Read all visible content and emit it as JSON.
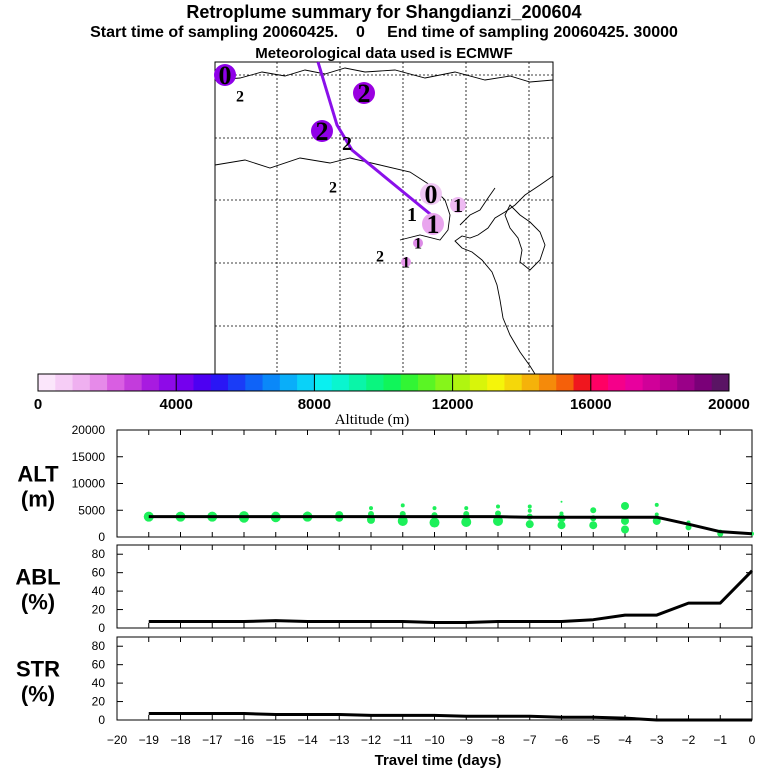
{
  "titles": {
    "line1": "Retroplume summary for Shangdianzi_200604",
    "line2": "Start time of sampling 20060425.    0     End time of sampling 20060425. 30000",
    "line3": "Meteorological data used is ECMWF"
  },
  "colorbar": {
    "title": "Altitude (m)",
    "tick_labels": [
      "0",
      "4000",
      "8000",
      "12000",
      "16000",
      "20000"
    ],
    "colors": [
      "#fbe6fb",
      "#f6cdf6",
      "#efb0f0",
      "#e68ae9",
      "#d95ee2",
      "#c33cdc",
      "#a81be0",
      "#8e0ae8",
      "#7500ee",
      "#4d00f2",
      "#2a16f5",
      "#1a3cf7",
      "#0f63f8",
      "#0a88f9",
      "#0aaef9",
      "#0ad2f8",
      "#0af0f0",
      "#0af5cf",
      "#0af5a8",
      "#0af57f",
      "#10f55a",
      "#32f534",
      "#5af524",
      "#86f51a",
      "#b0f510",
      "#d8f50a",
      "#f5f50a",
      "#f5d70a",
      "#f5b20a",
      "#f58a0a",
      "#f5600a",
      "#f0161e",
      "#ff0064",
      "#f5008a",
      "#e8009e",
      "#d00099",
      "#b80092",
      "#9a0088",
      "#7a0078",
      "#5a1464"
    ]
  },
  "map": {
    "markers": [
      {
        "label": "0",
        "size": "large",
        "color": "#8e00e8"
      },
      {
        "label": "2",
        "size": "small",
        "color": ""
      },
      {
        "label": "2",
        "size": "large",
        "color": "#9a00e0"
      },
      {
        "label": "2",
        "size": "large",
        "color": "#9000e6"
      },
      {
        "label": "2",
        "size": "medium",
        "color": ""
      },
      {
        "label": "2",
        "size": "small",
        "color": ""
      },
      {
        "label": "0",
        "size": "large",
        "color": "#f0c8f4"
      },
      {
        "label": "1",
        "size": "medium",
        "color": "#eebaf2"
      },
      {
        "label": "1",
        "size": "medium",
        "color": ""
      },
      {
        "label": "1",
        "size": "large",
        "color": "#e9a5ee"
      },
      {
        "label": "1",
        "size": "small",
        "color": "#dc8ae6"
      },
      {
        "label": "2",
        "size": "small",
        "color": ""
      },
      {
        "label": "1",
        "size": "small",
        "color": "#e696ea"
      }
    ]
  },
  "chart_data": [
    {
      "type": "scatter",
      "name": "ALT",
      "ylabel_main": "ALT",
      "ylabel_unit": "(m)",
      "x_ticks": [
        -20,
        -19,
        -18,
        -17,
        -16,
        -15,
        -14,
        -13,
        -12,
        -11,
        -10,
        -9,
        -8,
        -7,
        -6,
        -5,
        -4,
        -3,
        -2,
        -1,
        0
      ],
      "xlim": [
        -20,
        0
      ],
      "ylim": [
        0,
        20000
      ],
      "y_ticks": [
        0,
        5000,
        10000,
        15000,
        20000
      ],
      "y_tick_labels": [
        "0",
        "5000",
        "10000",
        "15000",
        "20000"
      ],
      "mean_line": {
        "x": [
          -19,
          -18,
          -17,
          -16,
          -15,
          -14,
          -13,
          -12,
          -11,
          -10,
          -9,
          -8,
          -7,
          -6,
          -5,
          -4,
          -3,
          -2,
          -1,
          0
        ],
        "y": [
          3800,
          3800,
          3800,
          3800,
          3800,
          3800,
          3800,
          3800,
          3800,
          3800,
          3800,
          3800,
          3700,
          3700,
          3700,
          3700,
          3700,
          2400,
          1000,
          600
        ]
      },
      "scatter_points": [
        {
          "x": -19,
          "y": 3800,
          "r": 5
        },
        {
          "x": -18,
          "y": 3800,
          "r": 5
        },
        {
          "x": -17,
          "y": 3800,
          "r": 5
        },
        {
          "x": -16,
          "y": 3600,
          "r": 5
        },
        {
          "x": -16,
          "y": 3900,
          "r": 5
        },
        {
          "x": -15,
          "y": 3700,
          "r": 5
        },
        {
          "x": -15,
          "y": 4000,
          "r": 4
        },
        {
          "x": -14,
          "y": 3800,
          "r": 5
        },
        {
          "x": -14,
          "y": 4200,
          "r": 3
        },
        {
          "x": -13,
          "y": 3600,
          "r": 4
        },
        {
          "x": -13,
          "y": 4100,
          "r": 4
        },
        {
          "x": -12,
          "y": 3200,
          "r": 4
        },
        {
          "x": -12,
          "y": 4300,
          "r": 3
        },
        {
          "x": -12,
          "y": 5400,
          "r": 2
        },
        {
          "x": -11,
          "y": 3000,
          "r": 5
        },
        {
          "x": -11,
          "y": 4300,
          "r": 3
        },
        {
          "x": -11,
          "y": 5900,
          "r": 2
        },
        {
          "x": -10,
          "y": 2700,
          "r": 5
        },
        {
          "x": -10,
          "y": 4100,
          "r": 3
        },
        {
          "x": -10,
          "y": 5400,
          "r": 2
        },
        {
          "x": -9,
          "y": 2800,
          "r": 5
        },
        {
          "x": -9,
          "y": 4300,
          "r": 3
        },
        {
          "x": -9,
          "y": 5400,
          "r": 2
        },
        {
          "x": -8,
          "y": 3000,
          "r": 5
        },
        {
          "x": -8,
          "y": 4400,
          "r": 3
        },
        {
          "x": -8,
          "y": 5700,
          "r": 2
        },
        {
          "x": -7,
          "y": 2400,
          "r": 4
        },
        {
          "x": -7,
          "y": 3800,
          "r": 3
        },
        {
          "x": -7,
          "y": 4900,
          "r": 2
        },
        {
          "x": -7,
          "y": 5700,
          "r": 2
        },
        {
          "x": -6,
          "y": 2200,
          "r": 4
        },
        {
          "x": -6,
          "y": 3500,
          "r": 4
        },
        {
          "x": -6,
          "y": 4400,
          "r": 2
        },
        {
          "x": -6,
          "y": 6600,
          "r": 1
        },
        {
          "x": -5,
          "y": 2200,
          "r": 4
        },
        {
          "x": -5,
          "y": 3500,
          "r": 3
        },
        {
          "x": -5,
          "y": 5000,
          "r": 3
        },
        {
          "x": -4,
          "y": 1400,
          "r": 4
        },
        {
          "x": -4,
          "y": 3000,
          "r": 4
        },
        {
          "x": -4,
          "y": 5800,
          "r": 4
        },
        {
          "x": -3,
          "y": 3000,
          "r": 4
        },
        {
          "x": -3,
          "y": 4200,
          "r": 2
        },
        {
          "x": -3,
          "y": 6000,
          "r": 2
        },
        {
          "x": -2,
          "y": 1800,
          "r": 3
        },
        {
          "x": -2,
          "y": 2700,
          "r": 2
        },
        {
          "x": -1,
          "y": 600,
          "r": 3
        },
        {
          "x": -1,
          "y": 1000,
          "r": 2
        },
        {
          "x": 0,
          "y": 600,
          "r": 2
        }
      ]
    },
    {
      "type": "line",
      "name": "ABL",
      "ylabel_main": "ABL",
      "ylabel_unit": "(%)",
      "xlim": [
        -20,
        0
      ],
      "ylim": [
        0,
        90
      ],
      "y_ticks": [
        0,
        20,
        40,
        60,
        80
      ],
      "y_tick_labels": [
        "0",
        "20",
        "40",
        "60",
        "80"
      ],
      "x": [
        -19,
        -18,
        -17,
        -16,
        -15,
        -14,
        -13,
        -12,
        -11,
        -10,
        -9,
        -8,
        -7,
        -6,
        -5,
        -4,
        -3,
        -2,
        -1,
        0
      ],
      "y": [
        7,
        7,
        7,
        7,
        8,
        7,
        7,
        7,
        7,
        6,
        6,
        7,
        7,
        7,
        9,
        14,
        14,
        27,
        27,
        62
      ]
    },
    {
      "type": "line",
      "name": "STR",
      "ylabel_main": "STR",
      "ylabel_unit": "(%)",
      "xlim": [
        -20,
        0
      ],
      "ylim": [
        0,
        90
      ],
      "y_ticks": [
        0,
        20,
        40,
        60,
        80
      ],
      "y_tick_labels": [
        "0",
        "20",
        "40",
        "60",
        "80"
      ],
      "x": [
        -19,
        -18,
        -17,
        -16,
        -15,
        -14,
        -13,
        -12,
        -11,
        -10,
        -9,
        -8,
        -7,
        -6,
        -5,
        -4,
        -3,
        -2,
        -1,
        0
      ],
      "y": [
        7,
        7,
        7,
        7,
        6,
        6,
        6,
        5,
        5,
        5,
        4,
        4,
        4,
        3,
        3,
        2,
        0,
        0,
        0,
        0
      ],
      "xlabel": "Travel time (days)",
      "x_tick_labels": [
        "−20",
        "−19",
        "−18",
        "−17",
        "−16",
        "−15",
        "−14",
        "−13",
        "−12",
        "−11",
        "−10",
        "−9",
        "−8",
        "−7",
        "−6",
        "−5",
        "−4",
        "−3",
        "−2",
        "−1",
        "0"
      ]
    }
  ]
}
